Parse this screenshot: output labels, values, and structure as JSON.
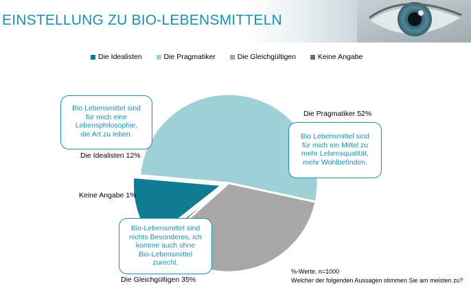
{
  "page": {
    "title": "EINSTELLUNG ZU BIO-LEBENSMITTELN"
  },
  "chart_data": {
    "type": "pie",
    "categories": [
      "Die Idealisten",
      "Die Pragmatiker",
      "Die Gleichgültigen",
      "Keine Angabe"
    ],
    "values": [
      12,
      52,
      35,
      1
    ],
    "colors": [
      "#0f7c91",
      "#9fd0d6",
      "#a8a8a8",
      "#6e6e6e"
    ],
    "legend_position": "top",
    "slice_labels": [
      "Die Idealisten  12%",
      "Die Pragmatiker  52%",
      "Die Gleichgültigen 35%",
      "Keine Angabe 1%"
    ]
  },
  "bubbles": {
    "idealisten": [
      "Bio Lebensmittel sind",
      "für mich eine",
      "Lebensphilosophie,",
      "die Art zu leben."
    ],
    "pragmatiker": [
      "Bio Lebensmittel sind",
      "für mich ein Mittel zu",
      "mehr Lebensqualität,",
      "mehr Wohlbefinden."
    ],
    "gleichgueltigen": [
      "Bio-Lebensmittel sind",
      "nichts Besonderes, ich",
      "komme auch ohne",
      "Bio-Lebensmittel",
      "zurecht."
    ]
  },
  "footer": {
    "note": "%-Werte, n=1000",
    "question": "Welcher der folgenden Aussagen stimmen Sie am meisten zu?"
  }
}
